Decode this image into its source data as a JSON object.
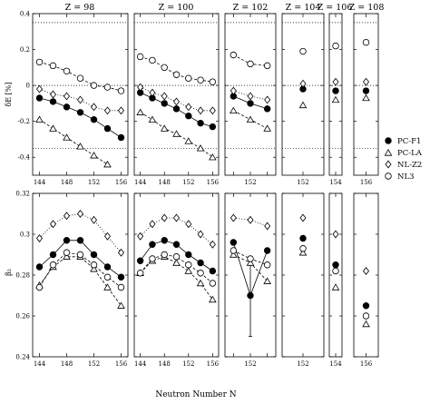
{
  "chart_data": {
    "type": "line",
    "xlabel": "Neutron Number N",
    "panel_titles": [
      "Z = 98",
      "Z = 100",
      "Z = 102",
      "Z = 104",
      "Z = 106",
      "Z = 108"
    ],
    "panel_x": [
      [
        143,
        157
      ],
      [
        143,
        157
      ],
      [
        149,
        155
      ],
      [
        151,
        153
      ],
      [
        153,
        155
      ],
      [
        155,
        157
      ]
    ],
    "x_ticks": [
      [
        144,
        148,
        152,
        156
      ],
      [
        144,
        148,
        152,
        156
      ],
      [
        150,
        152,
        154
      ],
      [
        152
      ],
      [
        154
      ],
      [
        156
      ]
    ],
    "x_tick_labels": [
      [
        "144",
        "148",
        "152",
        "156"
      ],
      [
        "144",
        "148",
        "152",
        "156"
      ],
      [
        "",
        "152",
        ""
      ],
      [
        "152"
      ],
      [
        "154"
      ],
      [
        "156"
      ]
    ],
    "legend": [
      "PC-F1",
      "PC-LA",
      "NL-Z2",
      "NL3"
    ],
    "legend_placement": "right",
    "top_panel": {
      "ylabel": "δE [%]",
      "ylim": [
        -0.5,
        0.4
      ],
      "yticks": [
        -0.4,
        -0.2,
        0,
        0.2,
        0.4
      ],
      "ytick_labels": [
        "-0.4",
        "-0.2",
        "0",
        "0.2",
        "0.4"
      ],
      "reference_lines": [
        0.35,
        0,
        -0.35
      ],
      "series": [
        {
          "name": "PC-F1",
          "values": [
            [
              [
                144,
                -0.07
              ],
              [
                146,
                -0.09
              ],
              [
                148,
                -0.12
              ],
              [
                150,
                -0.15
              ],
              [
                152,
                -0.19
              ],
              [
                154,
                -0.24
              ],
              [
                156,
                -0.29
              ]
            ],
            [
              [
                144,
                -0.04
              ],
              [
                146,
                -0.07
              ],
              [
                148,
                -0.1
              ],
              [
                150,
                -0.13
              ],
              [
                152,
                -0.17
              ],
              [
                154,
                -0.21
              ],
              [
                156,
                -0.23
              ]
            ],
            [
              [
                150,
                -0.06
              ],
              [
                152,
                -0.1
              ],
              [
                154,
                -0.13
              ]
            ],
            [
              [
                152,
                -0.02
              ]
            ],
            [
              [
                154,
                -0.03
              ]
            ],
            [
              [
                156,
                -0.03
              ]
            ]
          ]
        },
        {
          "name": "PC-LA",
          "values": [
            [
              [
                144,
                -0.19
              ],
              [
                146,
                -0.24
              ],
              [
                148,
                -0.29
              ],
              [
                150,
                -0.34
              ],
              [
                152,
                -0.39
              ],
              [
                154,
                -0.44
              ]
            ],
            [
              [
                144,
                -0.15
              ],
              [
                146,
                -0.19
              ],
              [
                148,
                -0.24
              ],
              [
                150,
                -0.27
              ],
              [
                152,
                -0.31
              ],
              [
                154,
                -0.35
              ],
              [
                156,
                -0.4
              ]
            ],
            [
              [
                150,
                -0.14
              ],
              [
                152,
                -0.19
              ],
              [
                154,
                -0.24
              ]
            ],
            [
              [
                152,
                -0.11
              ]
            ],
            [
              [
                154,
                -0.08
              ]
            ],
            [
              [
                156,
                -0.07
              ]
            ]
          ]
        },
        {
          "name": "NL-Z2",
          "values": [
            [
              [
                144,
                -0.02
              ],
              [
                146,
                -0.05
              ],
              [
                148,
                -0.06
              ],
              [
                150,
                -0.08
              ],
              [
                152,
                -0.12
              ],
              [
                154,
                -0.14
              ],
              [
                156,
                -0.14
              ]
            ],
            [
              [
                144,
                -0.01
              ],
              [
                146,
                -0.04
              ],
              [
                148,
                -0.06
              ],
              [
                150,
                -0.09
              ],
              [
                152,
                -0.12
              ],
              [
                154,
                -0.14
              ],
              [
                156,
                -0.14
              ]
            ],
            [
              [
                150,
                -0.03
              ],
              [
                152,
                -0.06
              ],
              [
                154,
                -0.08
              ]
            ],
            [
              [
                152,
                0.01
              ]
            ],
            [
              [
                154,
                0.02
              ]
            ],
            [
              [
                156,
                0.02
              ]
            ]
          ]
        },
        {
          "name": "NL3",
          "values": [
            [
              [
                144,
                0.13
              ],
              [
                146,
                0.11
              ],
              [
                148,
                0.08
              ],
              [
                150,
                0.04
              ],
              [
                152,
                0.0
              ],
              [
                154,
                -0.01
              ],
              [
                156,
                -0.03
              ]
            ],
            [
              [
                144,
                0.16
              ],
              [
                146,
                0.14
              ],
              [
                148,
                0.1
              ],
              [
                150,
                0.06
              ],
              [
                152,
                0.04
              ],
              [
                154,
                0.03
              ],
              [
                156,
                0.02
              ]
            ],
            [
              [
                150,
                0.17
              ],
              [
                152,
                0.12
              ],
              [
                154,
                0.11
              ]
            ],
            [
              [
                152,
                0.19
              ]
            ],
            [
              [
                154,
                0.22
              ]
            ],
            [
              [
                156,
                0.24
              ]
            ]
          ]
        }
      ]
    },
    "bottom_panel": {
      "ylabel": "β₂",
      "ylim": [
        0.24,
        0.32
      ],
      "yticks": [
        0.24,
        0.26,
        0.28,
        0.3,
        0.32
      ],
      "ytick_labels": [
        "0.24",
        "0.26",
        "0.28",
        "0.3",
        "0.32"
      ],
      "error_bar": {
        "panel": 2,
        "x": 152,
        "low": 0.25,
        "high": 0.289
      },
      "series": [
        {
          "name": "PC-F1",
          "values": [
            [
              [
                144,
                0.284
              ],
              [
                146,
                0.29
              ],
              [
                148,
                0.297
              ],
              [
                150,
                0.297
              ],
              [
                152,
                0.29
              ],
              [
                154,
                0.284
              ],
              [
                156,
                0.279
              ]
            ],
            [
              [
                144,
                0.287
              ],
              [
                146,
                0.295
              ],
              [
                148,
                0.297
              ],
              [
                150,
                0.295
              ],
              [
                152,
                0.29
              ],
              [
                154,
                0.286
              ],
              [
                156,
                0.282
              ]
            ],
            [
              [
                150,
                0.296
              ],
              [
                152,
                0.27
              ],
              [
                154,
                0.292
              ]
            ],
            [
              [
                152,
                0.298
              ]
            ],
            [
              [
                154,
                0.285
              ]
            ],
            [
              [
                156,
                0.265
              ]
            ]
          ]
        },
        {
          "name": "PC-LA",
          "values": [
            [
              [
                144,
                0.275
              ],
              [
                146,
                0.284
              ],
              [
                148,
                0.289
              ],
              [
                150,
                0.289
              ],
              [
                152,
                0.283
              ],
              [
                154,
                0.274
              ],
              [
                156,
                0.265
              ]
            ],
            [
              [
                144,
                0.281
              ],
              [
                146,
                0.287
              ],
              [
                148,
                0.289
              ],
              [
                150,
                0.286
              ],
              [
                152,
                0.282
              ],
              [
                154,
                0.276
              ],
              [
                156,
                0.268
              ]
            ],
            [
              [
                150,
                0.29
              ],
              [
                152,
                0.286
              ],
              [
                154,
                0.277
              ]
            ],
            [
              [
                152,
                0.291
              ]
            ],
            [
              [
                154,
                0.274
              ]
            ],
            [
              [
                156,
                0.256
              ]
            ]
          ]
        },
        {
          "name": "NL-Z2",
          "values": [
            [
              [
                144,
                0.298
              ],
              [
                146,
                0.305
              ],
              [
                148,
                0.309
              ],
              [
                150,
                0.31
              ],
              [
                152,
                0.307
              ],
              [
                154,
                0.299
              ],
              [
                156,
                0.291
              ]
            ],
            [
              [
                144,
                0.299
              ],
              [
                146,
                0.305
              ],
              [
                148,
                0.308
              ],
              [
                150,
                0.308
              ],
              [
                152,
                0.305
              ],
              [
                154,
                0.3
              ],
              [
                156,
                0.295
              ]
            ],
            [
              [
                150,
                0.308
              ],
              [
                152,
                0.307
              ],
              [
                154,
                0.304
              ]
            ],
            [
              [
                152,
                0.308
              ]
            ],
            [
              [
                154,
                0.3
              ]
            ],
            [
              [
                156,
                0.282
              ]
            ]
          ]
        },
        {
          "name": "NL3",
          "values": [
            [
              [
                144,
                0.274
              ],
              [
                146,
                0.285
              ],
              [
                148,
                0.291
              ],
              [
                150,
                0.29
              ],
              [
                152,
                0.285
              ],
              [
                154,
                0.279
              ],
              [
                156,
                0.274
              ]
            ],
            [
              [
                144,
                0.281
              ],
              [
                146,
                0.288
              ],
              [
                148,
                0.29
              ],
              [
                150,
                0.289
              ],
              [
                152,
                0.285
              ],
              [
                154,
                0.281
              ],
              [
                156,
                0.276
              ]
            ],
            [
              [
                150,
                0.292
              ],
              [
                152,
                0.288
              ],
              [
                154,
                0.285
              ]
            ],
            [
              [
                152,
                0.293
              ]
            ],
            [
              [
                154,
                0.282
              ]
            ],
            [
              [
                156,
                0.26
              ]
            ]
          ]
        }
      ]
    }
  }
}
